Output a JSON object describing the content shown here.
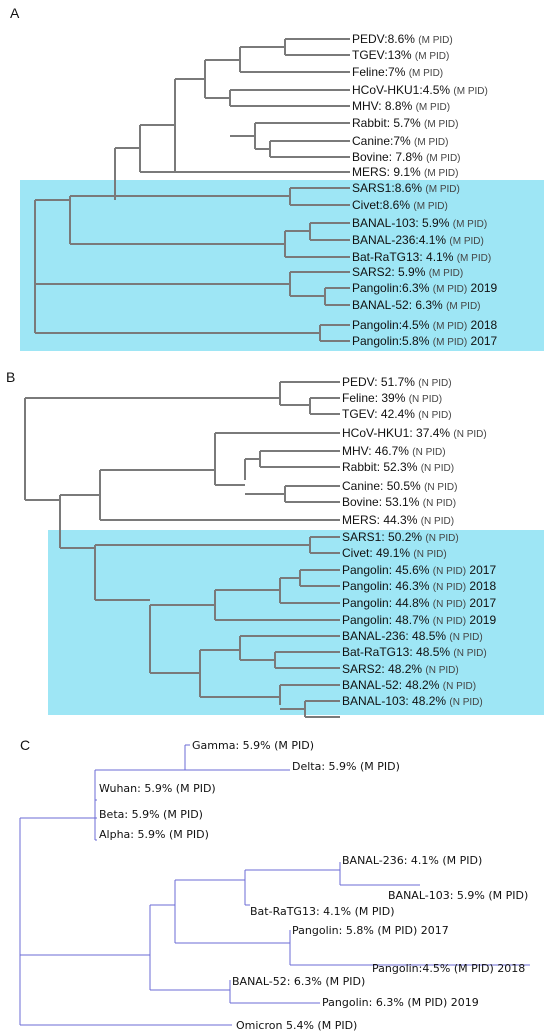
{
  "panels": [
    {
      "letter": "A",
      "leaves": [
        {
          "name": "PEDV",
          "value": ":8.6%",
          "pid": "(M PID)",
          "year": ""
        },
        {
          "name": "TGEV",
          "value": ":13%",
          "pid": "(M PID)",
          "year": ""
        },
        {
          "name": "Feline",
          "value": ":7%",
          "pid": "(M PID)",
          "year": ""
        },
        {
          "name": "HCoV-HKU1",
          "value": ":4.5%",
          "pid": "(M PID)",
          "year": ""
        },
        {
          "name": "MHV",
          "value": ": 8.8%",
          "pid": "(M PID)",
          "year": ""
        },
        {
          "name": "Rabbit",
          "value": ": 5.7%",
          "pid": "(M PID)",
          "year": ""
        },
        {
          "name": "Canine",
          "value": ":7%",
          "pid": "(M PID)",
          "year": ""
        },
        {
          "name": "Bovine",
          "value": ": 7.8%",
          "pid": "(M PID)",
          "year": ""
        },
        {
          "name": "MERS",
          "value": ": 9.1%",
          "pid": "(M PID)",
          "year": ""
        },
        {
          "name": "SARS1",
          "value": ":8.6%",
          "pid": "(M PID)",
          "year": ""
        },
        {
          "name": "Civet",
          "value": ":8.6%",
          "pid": "(M PID)",
          "year": ""
        },
        {
          "name": "BANAL-103",
          "value": ": 5.9%",
          "pid": "(M PID)",
          "year": ""
        },
        {
          "name": "BANAL-236",
          "value": ":4.1%",
          "pid": "(M PID)",
          "year": ""
        },
        {
          "name": "Bat-RaTG13",
          "value": ": 4.1%",
          "pid": "(M PID)",
          "year": ""
        },
        {
          "name": "SARS2",
          "value": ": 5.9%",
          "pid": "(M PID)",
          "year": ""
        },
        {
          "name": "Pangolin",
          "value": ":6.3%",
          "pid": "(M PID)",
          "year": "2019"
        },
        {
          "name": "BANAL-52",
          "value": ": 6.3%",
          "pid": "(M PID)",
          "year": ""
        },
        {
          "name": "Pangolin",
          "value": ":4.5%",
          "pid": "(M PID)",
          "year": "2018"
        },
        {
          "name": "Pangolin",
          "value": ":5.8%",
          "pid": "(M PID)",
          "year": "2017"
        }
      ]
    },
    {
      "letter": "B",
      "leaves": [
        {
          "name": "PEDV",
          "value": ": 51.7%",
          "pid": "(N PID)",
          "year": ""
        },
        {
          "name": "Feline",
          "value": ": 39%",
          "pid": "(N PID)",
          "year": ""
        },
        {
          "name": "TGEV",
          "value": ": 42.4%",
          "pid": "(N PID)",
          "year": ""
        },
        {
          "name": "HCoV-HKU1",
          "value": ": 37.4%",
          "pid": "(N PID)",
          "year": ""
        },
        {
          "name": "MHV",
          "value": ": 46.7%",
          "pid": "(N PID)",
          "year": ""
        },
        {
          "name": "Rabbit",
          "value": ": 52.3%",
          "pid": "(N PID)",
          "year": ""
        },
        {
          "name": "Canine",
          "value": ": 50.5%",
          "pid": "(N PID)",
          "year": ""
        },
        {
          "name": "Bovine",
          "value": ": 53.1%",
          "pid": "(N PID)",
          "year": ""
        },
        {
          "name": "MERS",
          "value": ": 44.3%",
          "pid": "(N PID)",
          "year": ""
        },
        {
          "name": "SARS1",
          "value": ": 50.2%",
          "pid": "(N PID)",
          "year": ""
        },
        {
          "name": "Civet",
          "value": ": 49.1%",
          "pid": "(N PID)",
          "year": ""
        },
        {
          "name": "Pangolin",
          "value": ": 45.6%",
          "pid": "(N PID)",
          "year": "2017"
        },
        {
          "name": "Pangolin",
          "value": ": 46.3%",
          "pid": "(N PID)",
          "year": "2018"
        },
        {
          "name": "Pangolin",
          "value": ": 44.8%",
          "pid": "(N PID)",
          "year": "2017"
        },
        {
          "name": "Pangolin",
          "value": ": 48.7%",
          "pid": "(N PID)",
          "year": "2019"
        },
        {
          "name": "BANAL-236",
          "value": ": 48.5%",
          "pid": "(N PID)",
          "year": ""
        },
        {
          "name": "Bat-RaTG13",
          "value": ": 48.5%",
          "pid": "(N PID)",
          "year": ""
        },
        {
          "name": "SARS2",
          "value": ": 48.2%",
          "pid": "(N PID)",
          "year": ""
        },
        {
          "name": "BANAL-52",
          "value": ": 48.2%",
          "pid": "(N PID)",
          "year": ""
        },
        {
          "name": "BANAL-103",
          "value": ": 48.2%",
          "pid": "(N PID)",
          "year": ""
        }
      ]
    },
    {
      "letter": "C",
      "leaves": [
        {
          "name": "Gamma",
          "value": ": 5.9%",
          "pid": "(M PID)",
          "year": ""
        },
        {
          "name": "Delta",
          "value": ": 5.9%",
          "pid": "(M PID)",
          "year": ""
        },
        {
          "name": "Wuhan",
          "value": ": 5.9%",
          "pid": "(M PID)",
          "year": ""
        },
        {
          "name": "Beta",
          "value": ": 5.9%",
          "pid": "(M PID)",
          "year": ""
        },
        {
          "name": "Alpha",
          "value": ": 5.9%",
          "pid": "(M PID)",
          "year": ""
        },
        {
          "name": "BANAL-236",
          "value": ": 4.1%",
          "pid": "(M PID)",
          "year": ""
        },
        {
          "name": "BANAL-103",
          "value": ": 5.9%",
          "pid": "(M PID)",
          "year": ""
        },
        {
          "name": "Bat-RaTG13",
          "value": ": 4.1%",
          "pid": "(M PID)",
          "year": ""
        },
        {
          "name": "Pangolin",
          "value": ": 5.8%",
          "pid": "(M PID)",
          "year": "2017"
        },
        {
          "name": "Pangolin",
          "value": ":4.5%",
          "pid": "(M PID)",
          "year": "2018"
        },
        {
          "name": "BANAL-52",
          "value": ": 6.3%",
          "pid": "(M PID)",
          "year": ""
        },
        {
          "name": "Pangolin",
          "value": ": 6.3%",
          "pid": "(M PID)",
          "year": "2019"
        },
        {
          "name": "Omicron",
          "value": " 5.4%",
          "pid": "(M PID)",
          "year": ""
        }
      ]
    }
  ],
  "colors": {
    "highlight": "#9ee6f5",
    "branch_ab": "#7a7a7a",
    "branch_c": "#6b6bd6"
  }
}
